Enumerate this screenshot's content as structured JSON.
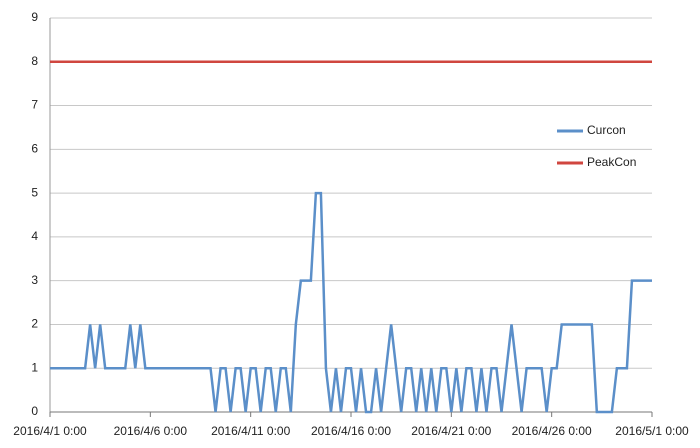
{
  "chart_data": {
    "type": "line",
    "xlim": [
      "2016/4/1 0:00",
      "2016/5/1 0:00"
    ],
    "xticks": [
      "2016/4/1 0:00",
      "2016/4/6 0:00",
      "2016/4/11 0:00",
      "2016/4/16 0:00",
      "2016/4/21 0:00",
      "2016/4/26 0:00",
      "2016/5/1 0:00"
    ],
    "ylim": [
      0,
      9
    ],
    "yticks": [
      0,
      1,
      2,
      3,
      4,
      5,
      6,
      7,
      8,
      9
    ],
    "grid": true,
    "legend": "right",
    "series": [
      {
        "name": "Curcon",
        "color": "#5b8fc9",
        "x": [
          "2016/4/1 0:00",
          "2016/4/1 6:00",
          "2016/4/1 12:00",
          "2016/4/1 18:00",
          "2016/4/2 0:00",
          "2016/4/2 6:00",
          "2016/4/2 12:00",
          "2016/4/2 18:00",
          "2016/4/3 0:00",
          "2016/4/3 6:00",
          "2016/4/3 12:00",
          "2016/4/3 18:00",
          "2016/4/4 0:00",
          "2016/4/4 6:00",
          "2016/4/4 12:00",
          "2016/4/4 18:00",
          "2016/4/5 0:00",
          "2016/4/5 6:00",
          "2016/4/5 12:00",
          "2016/4/5 18:00",
          "2016/4/6 0:00",
          "2016/4/6 6:00",
          "2016/4/6 12:00",
          "2016/4/6 18:00",
          "2016/4/7 0:00",
          "2016/4/7 6:00",
          "2016/4/7 12:00",
          "2016/4/7 18:00",
          "2016/4/8 0:00",
          "2016/4/8 6:00",
          "2016/4/8 12:00",
          "2016/4/8 18:00",
          "2016/4/9 0:00",
          "2016/4/9 6:00",
          "2016/4/9 12:00",
          "2016/4/9 18:00",
          "2016/4/10 0:00",
          "2016/4/10 6:00",
          "2016/4/10 12:00",
          "2016/4/10 18:00",
          "2016/4/11 0:00",
          "2016/4/11 6:00",
          "2016/4/11 12:00",
          "2016/4/11 18:00",
          "2016/4/12 0:00",
          "2016/4/12 6:00",
          "2016/4/12 12:00",
          "2016/4/12 18:00",
          "2016/4/13 0:00",
          "2016/4/13 6:00",
          "2016/4/13 12:00",
          "2016/4/13 18:00",
          "2016/4/14 0:00",
          "2016/4/14 6:00",
          "2016/4/14 12:00",
          "2016/4/14 18:00",
          "2016/4/15 0:00",
          "2016/4/15 6:00",
          "2016/4/15 12:00",
          "2016/4/15 18:00",
          "2016/4/16 0:00",
          "2016/4/16 6:00",
          "2016/4/16 12:00",
          "2016/4/16 18:00",
          "2016/4/17 0:00",
          "2016/4/17 6:00",
          "2016/4/17 12:00",
          "2016/4/17 18:00",
          "2016/4/18 0:00",
          "2016/4/18 6:00",
          "2016/4/18 12:00",
          "2016/4/18 18:00",
          "2016/4/19 0:00",
          "2016/4/19 6:00",
          "2016/4/19 12:00",
          "2016/4/19 18:00",
          "2016/4/20 0:00",
          "2016/4/20 6:00",
          "2016/4/20 12:00",
          "2016/4/20 18:00",
          "2016/4/21 0:00",
          "2016/4/21 6:00",
          "2016/4/21 12:00",
          "2016/4/21 18:00",
          "2016/4/22 0:00",
          "2016/4/22 6:00",
          "2016/4/22 12:00",
          "2016/4/22 18:00",
          "2016/4/23 0:00",
          "2016/4/23 6:00",
          "2016/4/23 12:00",
          "2016/4/23 18:00",
          "2016/4/24 0:00",
          "2016/4/24 6:00",
          "2016/4/24 12:00",
          "2016/4/24 18:00",
          "2016/4/25 0:00",
          "2016/4/25 6:00",
          "2016/4/25 12:00",
          "2016/4/25 18:00",
          "2016/4/26 0:00",
          "2016/4/26 6:00",
          "2016/4/26 12:00",
          "2016/4/26 18:00",
          "2016/4/27 0:00",
          "2016/4/27 6:00",
          "2016/4/27 12:00",
          "2016/4/27 18:00",
          "2016/4/28 0:00",
          "2016/4/28 6:00",
          "2016/4/28 12:00",
          "2016/4/28 18:00",
          "2016/4/29 0:00",
          "2016/4/29 6:00",
          "2016/4/29 12:00",
          "2016/4/29 18:00",
          "2016/4/30 0:00",
          "2016/4/30 6:00",
          "2016/4/30 12:00",
          "2016/4/30 18:00",
          "2016/5/1 0:00"
        ],
        "values": [
          1,
          1,
          1,
          1,
          1,
          1,
          1,
          1,
          2,
          1,
          2,
          1,
          1,
          1,
          1,
          1,
          2,
          1,
          2,
          1,
          1,
          1,
          1,
          1,
          1,
          1,
          1,
          1,
          1,
          1,
          1,
          1,
          1,
          0,
          1,
          1,
          0,
          1,
          1,
          0,
          1,
          1,
          0,
          1,
          1,
          0,
          1,
          1,
          0,
          2,
          3,
          3,
          3,
          5,
          5,
          1,
          0,
          1,
          0,
          1,
          1,
          0,
          1,
          0,
          0,
          1,
          0,
          1,
          2,
          1,
          0,
          1,
          1,
          0,
          1,
          0,
          1,
          0,
          1,
          1,
          0,
          1,
          0,
          1,
          1,
          0,
          1,
          0,
          1,
          1,
          0,
          1,
          2,
          1,
          0,
          1,
          1,
          1,
          1,
          0,
          1,
          1,
          2,
          2,
          2,
          2,
          2,
          2,
          2,
          0,
          0,
          0,
          0,
          1,
          1,
          1,
          3,
          3,
          3,
          3,
          3
        ]
      },
      {
        "name": "PeakCon",
        "color": "#d0463f",
        "x": [
          "2016/4/1 0:00",
          "2016/5/1 0:00"
        ],
        "values": [
          8,
          8
        ]
      }
    ]
  }
}
